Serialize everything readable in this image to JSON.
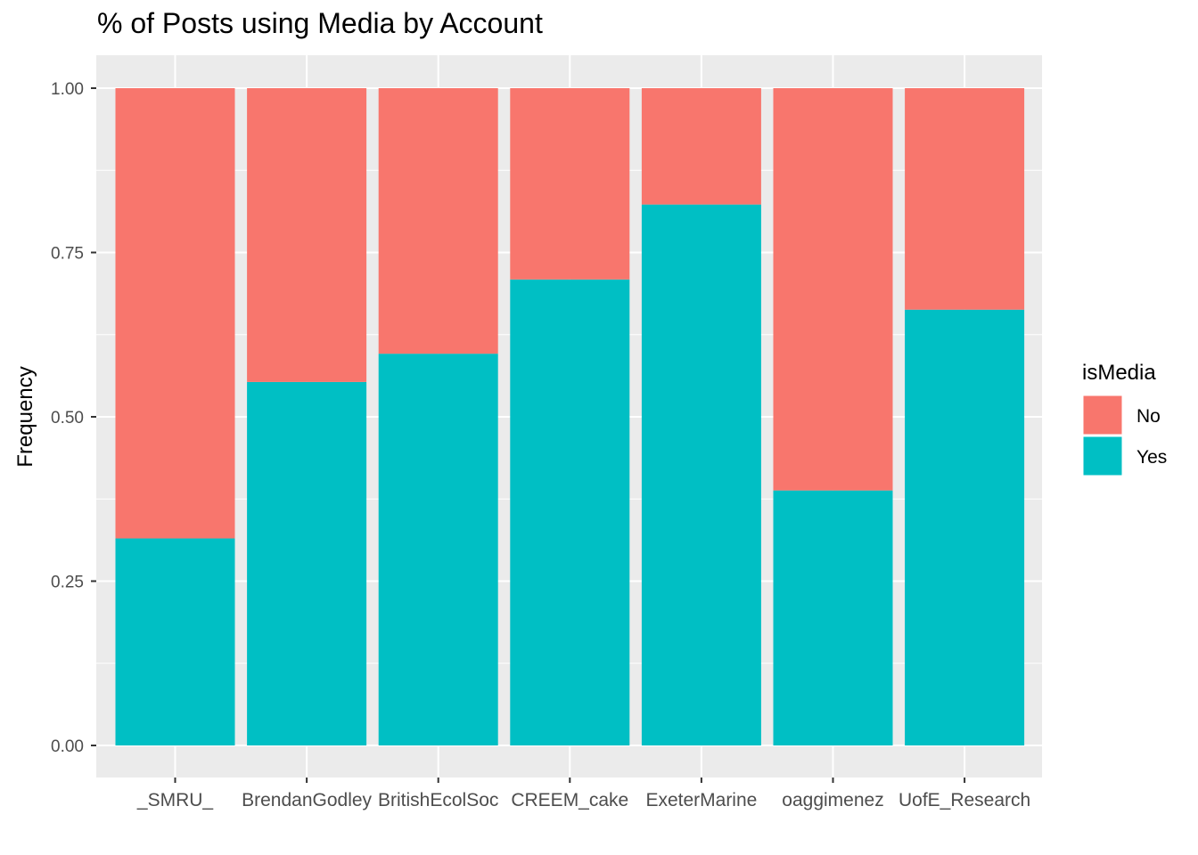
{
  "chart_data": {
    "type": "bar",
    "stacked": true,
    "title": "% of Posts using Media by Account",
    "xlabel": "",
    "ylabel": "Frequency",
    "ylim": [
      0,
      1
    ],
    "yticks": [
      "0.00",
      "0.25",
      "0.50",
      "0.75",
      "1.00"
    ],
    "grid": true,
    "legend": {
      "title": "isMedia",
      "position": "right"
    },
    "categories": [
      "_SMRU_",
      "BrendanGodley",
      "BritishEcolSoc",
      "CREEM_cake",
      "ExeterMarine",
      "oaggimenez",
      "UofE_Research"
    ],
    "series": [
      {
        "name": "Yes",
        "color": "#00BFC4",
        "values": [
          0.315,
          0.553,
          0.596,
          0.709,
          0.823,
          0.388,
          0.663
        ]
      },
      {
        "name": "No",
        "color": "#F8766D",
        "values": [
          0.685,
          0.447,
          0.404,
          0.291,
          0.177,
          0.612,
          0.337
        ]
      }
    ]
  }
}
